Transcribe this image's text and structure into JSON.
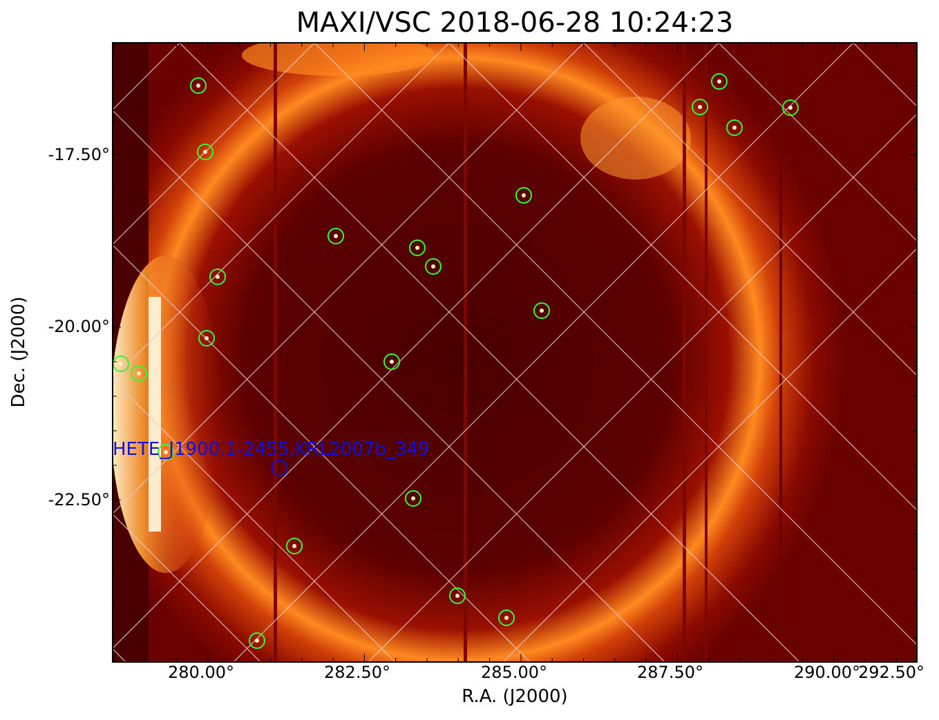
{
  "title": "MAXI/VSC 2018-06-28 10:24:23",
  "axes": {
    "xlabel": "R.A. (J2000)",
    "ylabel": "Dec. (J2000)",
    "xticks": [
      "280.00°",
      "282.50°",
      "285.00°",
      "287.50°",
      "290.00°",
      "292.50°"
    ],
    "yticks": [
      "-17.50°",
      "-20.00°",
      "-22.50°"
    ]
  },
  "image": {
    "colormap": "hot",
    "colors": {
      "dark": "#5a0000",
      "mid": "#a01000",
      "bright": "#ff8a20",
      "hot": "#fff5d0"
    },
    "grid_color": "#e8c8c8",
    "source_marker_color": "#30ff30",
    "label_color": "#1010e0"
  },
  "annotation": {
    "label": "HETE_J1900.1-2455,KRL2007b_349"
  }
}
